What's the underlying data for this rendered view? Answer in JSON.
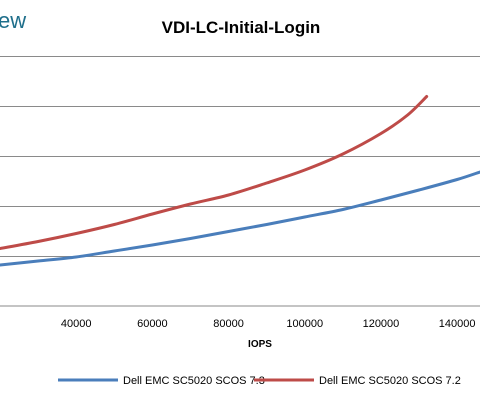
{
  "brand": {
    "text": "ew"
  },
  "chart_data": {
    "type": "line",
    "title": "VDI-LC-Initial-Login",
    "xlabel": "IOPS",
    "ylabel": "",
    "xlim": [
      20000,
      146000
    ],
    "ylim": [
      0,
      5
    ],
    "x_ticks": [
      "40000",
      "60000",
      "80000",
      "100000",
      "120000",
      "140000"
    ],
    "x_tick_values": [
      40000,
      60000,
      80000,
      100000,
      120000,
      140000
    ],
    "y_grid": [
      1,
      2,
      3,
      4,
      5
    ],
    "grid": {
      "horizontal": true,
      "vertical": false
    },
    "legend_position": "bottom",
    "series": [
      {
        "name": "Dell EMC SC5020 SCOS 7.3",
        "color": "#4a7ebb",
        "x": [
          20000,
          30000,
          40000,
          50000,
          60000,
          70000,
          80000,
          90000,
          100000,
          110000,
          120000,
          130000,
          140000,
          146000
        ],
        "y": [
          0.82,
          0.9,
          0.98,
          1.1,
          1.22,
          1.35,
          1.49,
          1.63,
          1.78,
          1.93,
          2.12,
          2.32,
          2.53,
          2.68
        ]
      },
      {
        "name": "Dell EMC SC5020 SCOS 7.2",
        "color": "#be4b48",
        "x": [
          20000,
          30000,
          40000,
          50000,
          60000,
          70000,
          80000,
          90000,
          100000,
          110000,
          120000,
          127000,
          132000
        ],
        "y": [
          1.15,
          1.29,
          1.45,
          1.63,
          1.84,
          2.04,
          2.22,
          2.46,
          2.72,
          3.04,
          3.45,
          3.82,
          4.19
        ]
      }
    ]
  }
}
